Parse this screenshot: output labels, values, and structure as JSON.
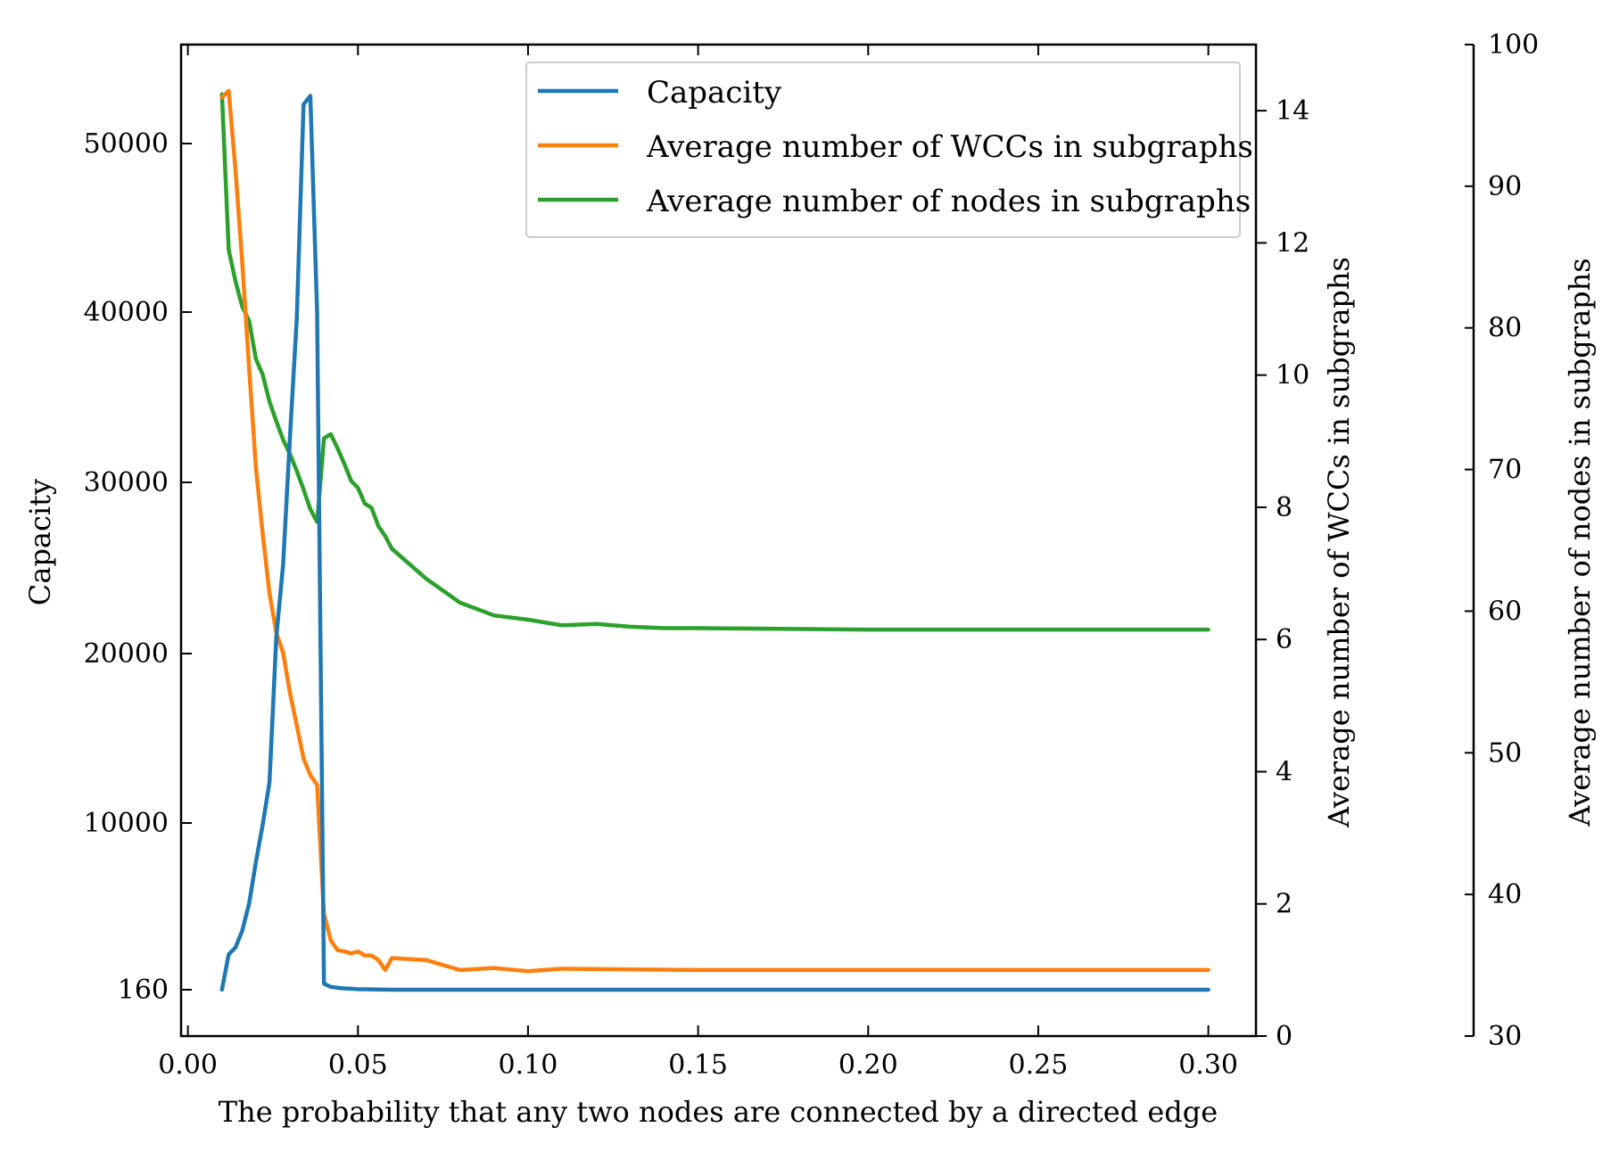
{
  "chart_data": {
    "type": "line",
    "xlabel": "The probability that any two nodes are connected by a directed edge",
    "xlim": [
      -0.002,
      0.314
    ],
    "x_ticks": [
      0.0,
      0.05,
      0.1,
      0.15,
      0.2,
      0.25,
      0.3
    ],
    "x_tick_labels": [
      "0.00",
      "0.05",
      "0.10",
      "0.15",
      "0.20",
      "0.25",
      "0.30"
    ],
    "axes": {
      "left": {
        "label": "Capacity",
        "tick_labels": [
          "160",
          "10000",
          "20000",
          "30000",
          "40000",
          "50000"
        ]
      },
      "right1": {
        "label": "Average number of WCCs in subgraphs",
        "ylim": [
          0,
          15
        ],
        "ticks": [
          0,
          2,
          4,
          6,
          8,
          10,
          12,
          14
        ],
        "tick_labels": [
          "0",
          "2",
          "4",
          "6",
          "8",
          "10",
          "12",
          "14"
        ]
      },
      "right2": {
        "label": "Average number of nodes in subgraphs",
        "ylim": [
          30,
          100
        ],
        "ticks": [
          30,
          40,
          50,
          60,
          70,
          80,
          90,
          100
        ],
        "tick_labels": [
          "30",
          "40",
          "50",
          "60",
          "70",
          "80",
          "90",
          "100"
        ]
      }
    },
    "legend_position": "upper center",
    "series": [
      {
        "name": "Capacity",
        "axis": "left",
        "color": "#1f77b4",
        "x": [
          0.01,
          0.012,
          0.014,
          0.016,
          0.018,
          0.02,
          0.022,
          0.024,
          0.026,
          0.028,
          0.03,
          0.032,
          0.034,
          0.036,
          0.038,
          0.04,
          0.042,
          0.045,
          0.05,
          0.06,
          0.08,
          0.1,
          0.15,
          0.2,
          0.25,
          0.3
        ],
        "values": [
          160,
          2250,
          2650,
          3650,
          5250,
          7700,
          9900,
          12400,
          21000,
          25200,
          32600,
          39600,
          52300,
          52800,
          40000,
          520,
          330,
          250,
          190,
          160,
          160,
          160,
          160,
          160,
          160,
          160
        ]
      },
      {
        "name": "Average number of WCCs in subgraphs",
        "axis": "right1",
        "color": "#ff7f0e",
        "x": [
          0.01,
          0.012,
          0.014,
          0.016,
          0.018,
          0.02,
          0.022,
          0.024,
          0.026,
          0.028,
          0.03,
          0.032,
          0.034,
          0.036,
          0.038,
          0.04,
          0.042,
          0.044,
          0.046,
          0.048,
          0.05,
          0.052,
          0.054,
          0.056,
          0.058,
          0.06,
          0.07,
          0.08,
          0.09,
          0.1,
          0.11,
          0.15,
          0.2,
          0.25,
          0.3
        ],
        "values": [
          14.2,
          14.3,
          13.1,
          11.7,
          10.1,
          8.6,
          7.6,
          6.7,
          6.1,
          5.8,
          5.2,
          4.7,
          4.2,
          3.95,
          3.8,
          1.85,
          1.45,
          1.3,
          1.28,
          1.25,
          1.28,
          1.22,
          1.22,
          1.15,
          1.0,
          1.18,
          1.15,
          1.0,
          1.03,
          0.98,
          1.02,
          1.0,
          1.0,
          1.0,
          1.0
        ]
      },
      {
        "name": "Average number of nodes in subgraphs",
        "axis": "right2",
        "color": "#2ca02c",
        "x": [
          0.01,
          0.012,
          0.014,
          0.016,
          0.018,
          0.02,
          0.022,
          0.024,
          0.026,
          0.028,
          0.03,
          0.032,
          0.034,
          0.036,
          0.038,
          0.04,
          0.042,
          0.044,
          0.046,
          0.048,
          0.05,
          0.052,
          0.054,
          0.056,
          0.058,
          0.06,
          0.07,
          0.08,
          0.09,
          0.1,
          0.11,
          0.12,
          0.13,
          0.14,
          0.15,
          0.2,
          0.25,
          0.3
        ],
        "values": [
          96.5,
          85.5,
          83.3,
          81.5,
          80.5,
          77.8,
          76.7,
          74.8,
          73.4,
          72.1,
          71.1,
          69.9,
          68.6,
          67.2,
          66.3,
          72.2,
          72.5,
          71.5,
          70.4,
          69.2,
          68.7,
          67.6,
          67.3,
          66.0,
          65.3,
          64.4,
          62.3,
          60.6,
          59.7,
          59.4,
          59.0,
          59.1,
          58.9,
          58.8,
          58.8,
          58.7,
          58.7,
          58.7
        ]
      }
    ]
  }
}
